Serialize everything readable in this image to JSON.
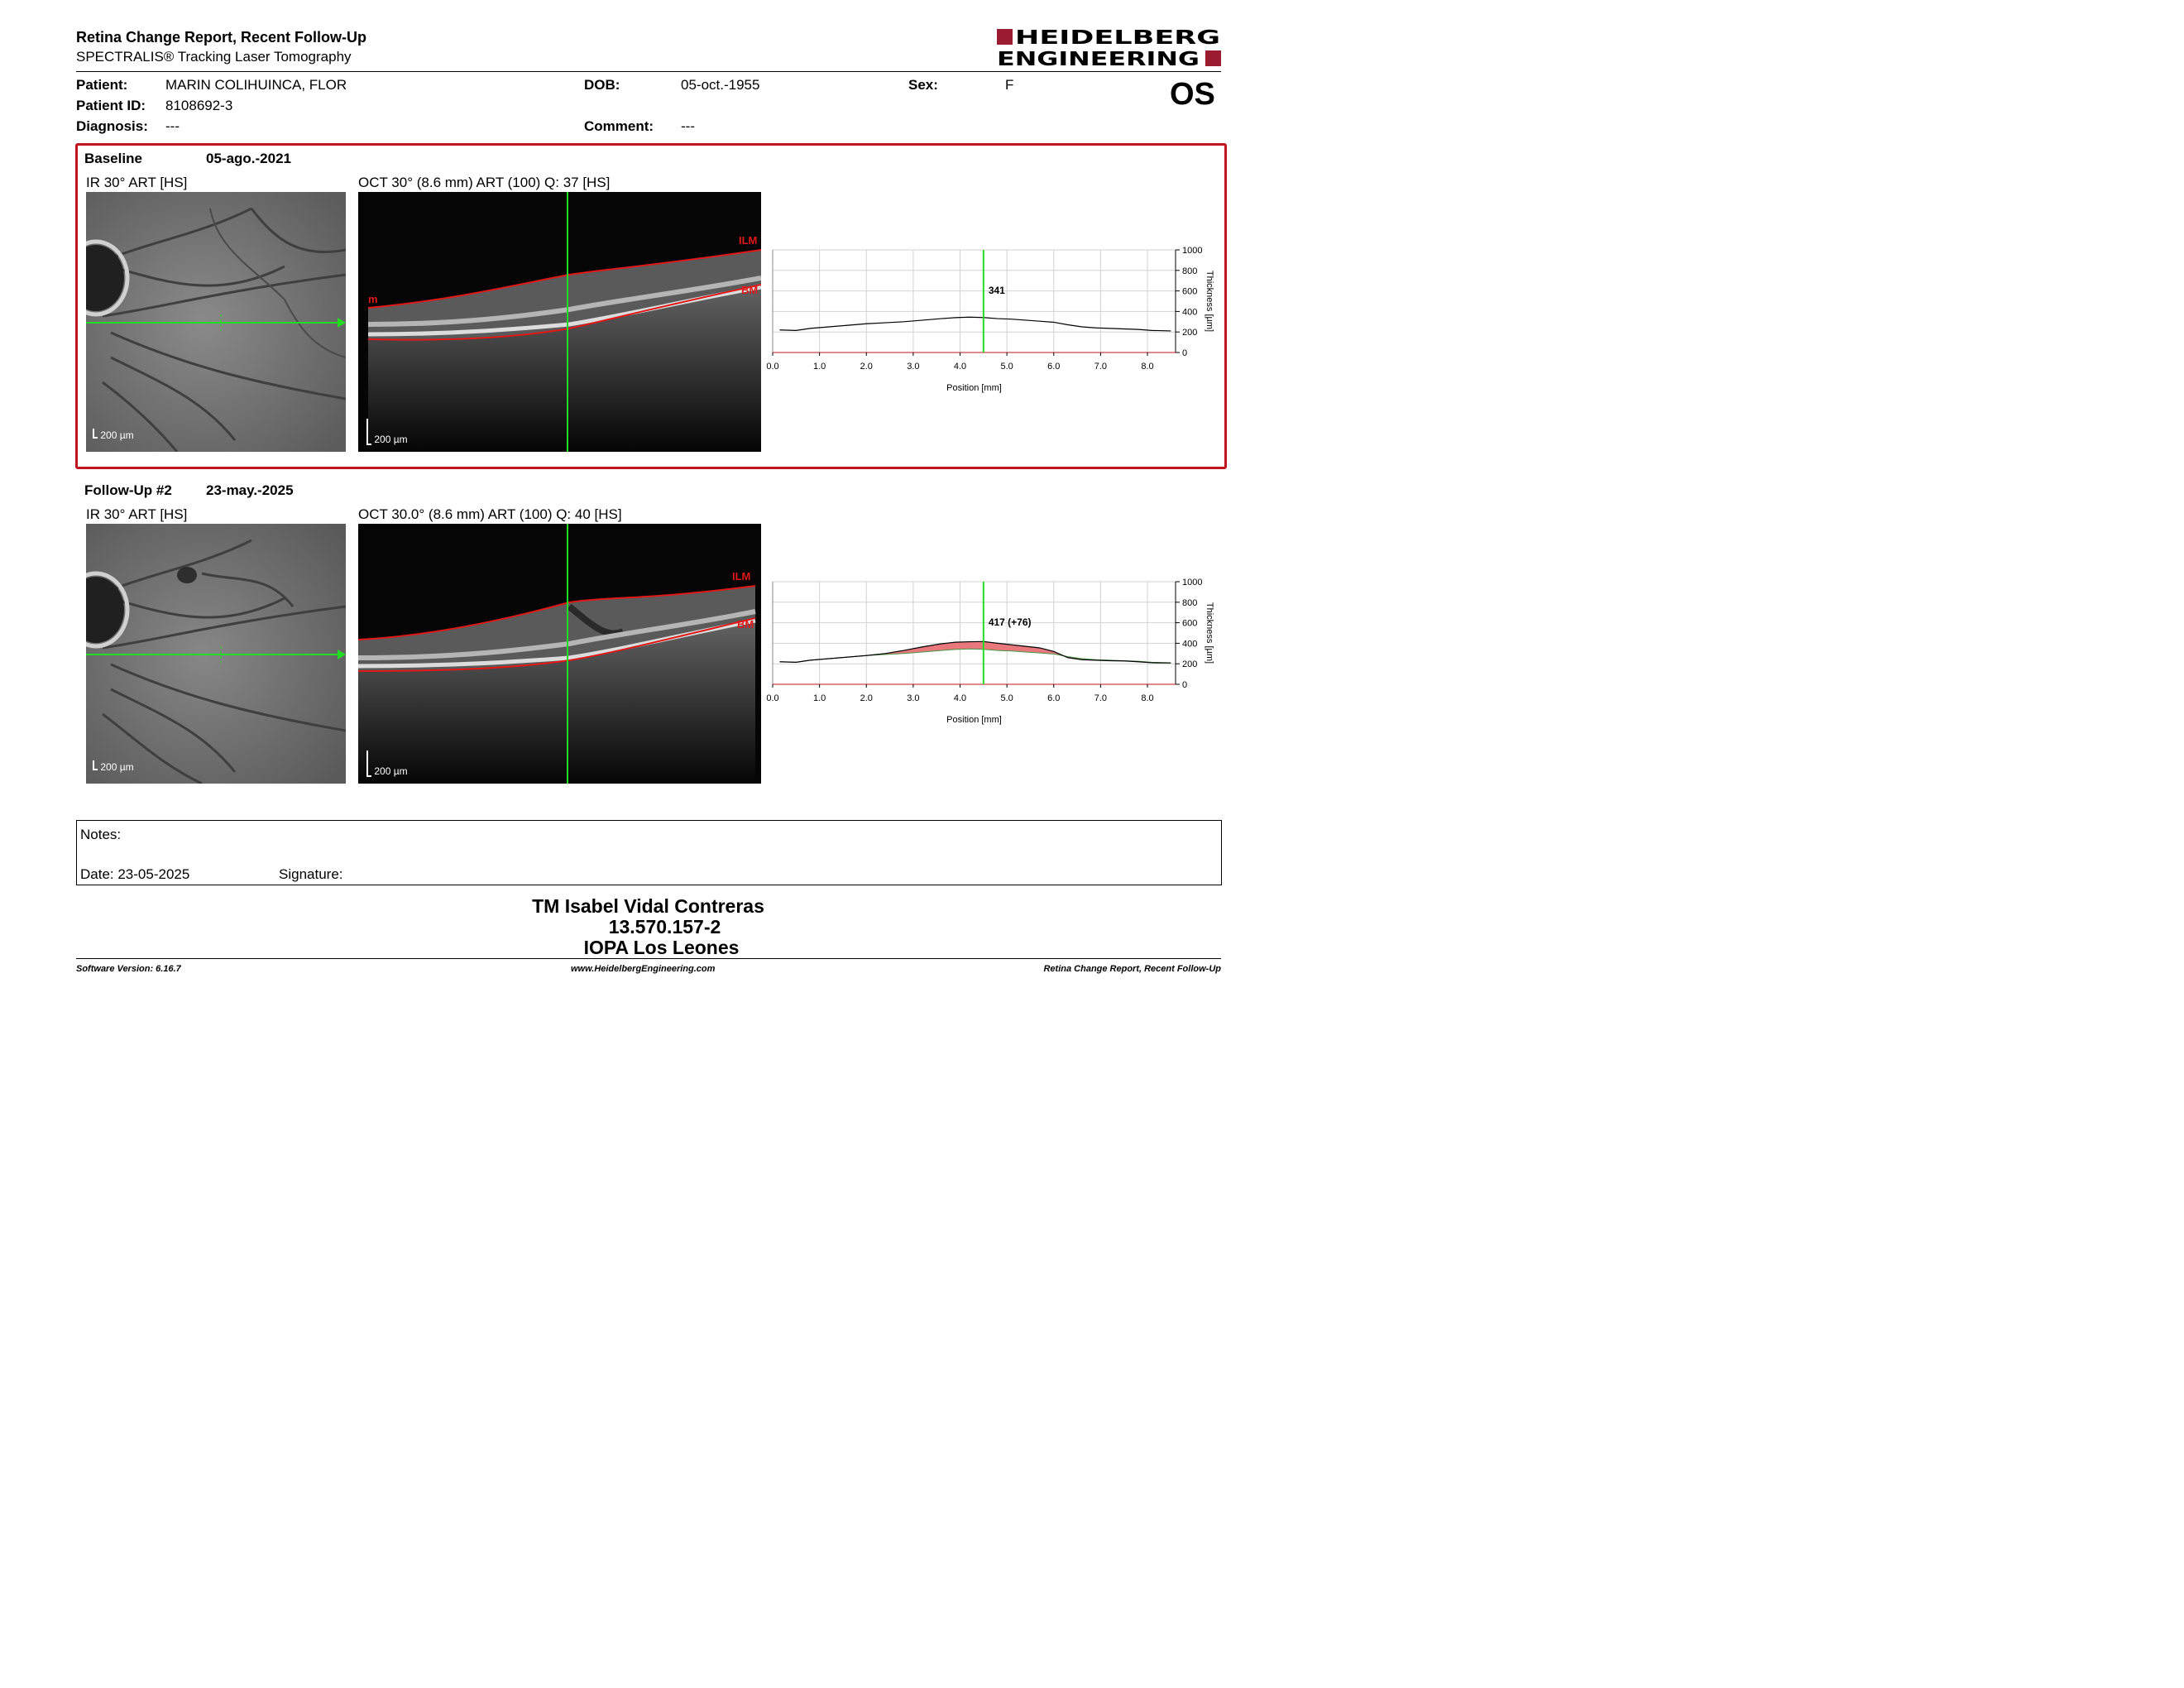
{
  "header": {
    "title": "Retina Change Report, Recent Follow-Up",
    "subtitle": "SPECTRALIS® Tracking Laser Tomography",
    "logo_line1": "HEIDELBERG",
    "logo_line2": "ENGINEERING"
  },
  "patient": {
    "patient_label": "Patient:",
    "patient_name": "MARIN COLIHUINCA, FLOR",
    "id_label": "Patient ID:",
    "id_value": "8108692-3",
    "diagnosis_label": "Diagnosis:",
    "diagnosis_value": "---",
    "dob_label": "DOB:",
    "dob_value": "05-oct.-1955",
    "comment_label": "Comment:",
    "comment_value": "---",
    "sex_label": "Sex:",
    "sex_value": "F",
    "eye": "OS"
  },
  "baseline": {
    "label": "Baseline",
    "date": "05-ago.-2021",
    "ir_caption": "IR 30° ART [HS]",
    "oct_caption": "OCT 30° (8.6 mm) ART (100) Q: 37 [HS]",
    "ir_scale": "200 µm",
    "oct_scale": "200 µm",
    "ilm_label": "ILM",
    "bm_label": "BM",
    "left_marker": "m"
  },
  "followup": {
    "label": "Follow-Up #2",
    "date": "23-may.-2025",
    "ir_caption": "IR 30° ART [HS]",
    "oct_caption": "OCT 30.0° (8.6 mm) ART (100) Q: 40 [HS]",
    "ir_scale": "200 µm",
    "oct_scale": "200 µm",
    "ilm_label": "ILM",
    "bm_label": "BM"
  },
  "chart_data": [
    {
      "type": "line",
      "xlabel": "Position [mm]",
      "ylabel": "Thickness [µm]",
      "xlim": [
        0,
        8.6
      ],
      "ylim": [
        0,
        1000
      ],
      "xticks": [
        0.0,
        1.0,
        2.0,
        3.0,
        4.0,
        5.0,
        6.0,
        7.0,
        8.0
      ],
      "yticks": [
        0,
        200,
        400,
        600,
        800,
        1000
      ],
      "marker_x": 4.5,
      "marker_label": "341",
      "grid": true,
      "series": [
        {
          "x": [
            0.15,
            0.5,
            0.8,
            1.2,
            1.6,
            2.0,
            2.4,
            2.8,
            3.2,
            3.6,
            3.9,
            4.2,
            4.5,
            4.8,
            5.1,
            5.4,
            5.7,
            6.0,
            6.3,
            6.6,
            6.9,
            7.2,
            7.5,
            7.8,
            8.1,
            8.5
          ],
          "y": [
            220,
            215,
            235,
            250,
            265,
            280,
            290,
            300,
            315,
            330,
            340,
            345,
            341,
            330,
            325,
            315,
            305,
            295,
            270,
            250,
            240,
            235,
            230,
            225,
            215,
            210
          ]
        }
      ]
    },
    {
      "type": "line",
      "xlabel": "Position [mm]",
      "ylabel": "Thickness [µm]",
      "xlim": [
        0,
        8.6
      ],
      "ylim": [
        0,
        1000
      ],
      "xticks": [
        0.0,
        1.0,
        2.0,
        3.0,
        4.0,
        5.0,
        6.0,
        7.0,
        8.0
      ],
      "yticks": [
        0,
        200,
        400,
        600,
        800,
        1000
      ],
      "marker_x": 4.5,
      "marker_label": "417 (+76)",
      "grid": true,
      "series": [
        {
          "x": [
            0.15,
            0.5,
            0.8,
            1.2,
            1.6,
            2.0,
            2.4,
            2.8,
            3.2,
            3.6,
            3.9,
            4.2,
            4.5,
            4.8,
            5.1,
            5.4,
            5.7,
            6.0,
            6.3,
            6.6,
            6.9,
            7.2,
            7.5,
            7.8,
            8.1,
            8.5
          ],
          "y": [
            220,
            215,
            235,
            250,
            265,
            280,
            300,
            330,
            365,
            395,
            410,
            415,
            417,
            400,
            385,
            370,
            355,
            320,
            260,
            240,
            235,
            230,
            228,
            220,
            210,
            208
          ]
        },
        {
          "x": [
            0.15,
            0.5,
            0.8,
            1.2,
            1.6,
            2.0,
            2.4,
            2.8,
            3.2,
            3.6,
            3.9,
            4.2,
            4.5,
            4.8,
            5.1,
            5.4,
            5.7,
            6.0,
            6.3,
            6.6,
            6.9,
            7.2,
            7.5,
            7.8,
            8.1,
            8.5
          ],
          "y": [
            220,
            215,
            235,
            250,
            265,
            280,
            290,
            300,
            315,
            330,
            340,
            345,
            341,
            330,
            325,
            315,
            305,
            295,
            270,
            250,
            240,
            235,
            230,
            225,
            215,
            210
          ]
        }
      ]
    }
  ],
  "notes": {
    "notes_label": "Notes:",
    "date_label": "Date: 23-05-2025",
    "signature_label": "Signature:"
  },
  "signatory": {
    "name": "TM Isabel Vidal Contreras",
    "id": "13.570.157-2",
    "institution": "IOPA Los Leones"
  },
  "footer": {
    "software": "Software Version: 6.16.7",
    "website": "www.HeidelbergEngineering.com",
    "report": "Retina Change Report, Recent Follow-Up"
  },
  "colors": {
    "accent_red": "#c0141e",
    "logo_red": "#9b1b30",
    "scan_green": "#22dd22",
    "increase_fill": "#e8787c"
  }
}
